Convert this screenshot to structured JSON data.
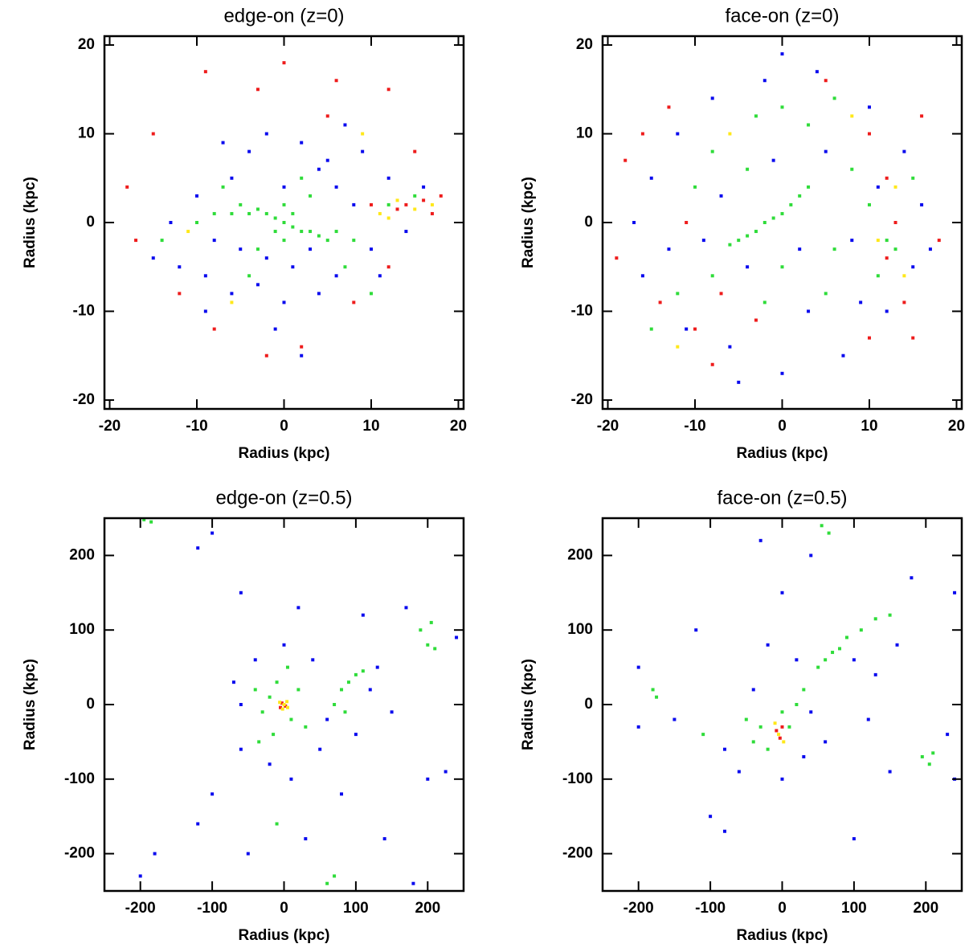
{
  "chart_data": [
    {
      "type": "scatter",
      "title": "edge-on (z=0)",
      "xlabel": "Radius (kpc)",
      "ylabel": "Radius (kpc)",
      "xlim": [
        -20.6,
        20.6
      ],
      "ylim": [
        -21,
        21
      ],
      "xticks": [
        -20,
        -10,
        0,
        10,
        20
      ],
      "yticks": [
        -20,
        -10,
        0,
        10,
        20
      ],
      "series": [
        {
          "color": "#0a0aee",
          "x": [
            -10,
            -8,
            -6,
            -4,
            -2,
            2,
            4,
            6,
            8,
            10,
            6,
            4,
            0,
            -3,
            -6,
            -9,
            -12,
            -13,
            12,
            14,
            9,
            -7,
            1,
            -2,
            3,
            0,
            -5,
            5,
            11,
            -1,
            2,
            -15,
            16,
            7,
            -9
          ],
          "y": [
            3,
            -2,
            5,
            8,
            10,
            9,
            6,
            4,
            2,
            -3,
            -6,
            -8,
            -9,
            -7,
            -8,
            -6,
            -5,
            0,
            5,
            -1,
            8,
            9,
            -5,
            -4,
            -3,
            4,
            -3,
            7,
            -6,
            -12,
            -15,
            -4,
            4,
            11,
            -10
          ]
        },
        {
          "color": "#2fdc3a",
          "x": [
            0,
            1,
            -1,
            2,
            -2,
            3,
            -3,
            4,
            -4,
            5,
            -5,
            6,
            -6,
            -1,
            1,
            0,
            0,
            -8,
            8,
            -10,
            12,
            -14,
            15,
            -3,
            3,
            2,
            -4,
            7,
            -7,
            10
          ],
          "y": [
            0,
            -0.5,
            0.5,
            -1,
            1,
            -1,
            1.5,
            -1.5,
            1,
            -2,
            2,
            -1,
            1,
            -1,
            1,
            2,
            -2,
            1,
            -2,
            0,
            2,
            -2,
            3,
            -3,
            3,
            5,
            -6,
            -5,
            4,
            -8
          ]
        },
        {
          "color": "#ee1c1c",
          "x": [
            -9,
            -3,
            0,
            5,
            12,
            15,
            18,
            17,
            14,
            13,
            -18,
            -15,
            -12,
            -8,
            -2,
            2,
            8,
            12,
            -17,
            6,
            10,
            16
          ],
          "y": [
            17,
            15,
            18,
            12,
            15,
            8,
            3,
            1,
            2,
            1.5,
            4,
            10,
            -8,
            -12,
            -15,
            -14,
            -9,
            -5,
            -2,
            16,
            2,
            2.5
          ]
        },
        {
          "color": "#ffe81a",
          "x": [
            11,
            13,
            15,
            17,
            12,
            -11,
            9,
            -6
          ],
          "y": [
            1,
            2.5,
            1.5,
            2,
            0.5,
            -1,
            10,
            -9
          ]
        }
      ]
    },
    {
      "type": "scatter",
      "title": "face-on (z=0)",
      "xlabel": "Radius (kpc)",
      "ylabel": "Radius (kpc)",
      "xlim": [
        -20.6,
        20.6
      ],
      "ylim": [
        -21,
        21
      ],
      "xticks": [
        -20,
        -10,
        0,
        10,
        20
      ],
      "yticks": [
        -20,
        -10,
        0,
        10,
        20
      ],
      "series": [
        {
          "color": "#0a0aee",
          "x": [
            -15,
            -12,
            -8,
            -2,
            4,
            10,
            14,
            16,
            15,
            12,
            7,
            0,
            -6,
            -11,
            -16,
            -17,
            -7,
            5,
            8,
            3,
            -4,
            -9,
            2,
            -1,
            9,
            -13,
            0,
            -5,
            17,
            11
          ],
          "y": [
            5,
            10,
            14,
            16,
            17,
            13,
            8,
            2,
            -5,
            -10,
            -15,
            -17,
            -14,
            -12,
            -6,
            0,
            3,
            8,
            -2,
            -10,
            -5,
            -2,
            -3,
            7,
            -9,
            -3,
            19,
            -18,
            -3,
            4
          ]
        },
        {
          "color": "#2fdc3a",
          "x": [
            -5,
            -4,
            -3,
            -2,
            -1,
            0,
            1,
            2,
            3,
            -6,
            0,
            -3,
            3,
            6,
            -8,
            8,
            10,
            12,
            11,
            5,
            -2,
            -8,
            -12,
            -15,
            13,
            0,
            -4,
            6,
            15,
            -10
          ],
          "y": [
            -2,
            -1.5,
            -1,
            0,
            0.5,
            1,
            2,
            3,
            4,
            -2.5,
            13,
            12,
            11,
            14,
            8,
            6,
            2,
            -2,
            -6,
            -8,
            -9,
            -6,
            -8,
            -12,
            -3,
            -5,
            6,
            -3,
            5,
            4
          ]
        },
        {
          "color": "#ee1c1c",
          "x": [
            -18,
            -16,
            -13,
            -10,
            -14,
            -8,
            10,
            12,
            13,
            12,
            14,
            10,
            16,
            5,
            -3,
            -11,
            -7,
            18,
            15,
            -19
          ],
          "y": [
            7,
            10,
            13,
            -12,
            -9,
            -16,
            10,
            5,
            0,
            -4,
            -9,
            -13,
            12,
            16,
            -11,
            0,
            -8,
            -2,
            -13,
            -4
          ]
        },
        {
          "color": "#ffe81a",
          "x": [
            11,
            13,
            8,
            -6,
            14,
            -12
          ],
          "y": [
            -2,
            4,
            12,
            10,
            -6,
            -14
          ]
        }
      ]
    },
    {
      "type": "scatter",
      "title": "edge-on (z=0.5)",
      "xlabel": "Radius (kpc)",
      "ylabel": "Radius (kpc)",
      "xlim": [
        -250,
        250
      ],
      "ylim": [
        -250,
        250
      ],
      "xticks": [
        -200,
        -100,
        0,
        100,
        200
      ],
      "yticks": [
        -200,
        -100,
        0,
        100,
        200
      ],
      "series": [
        {
          "color": "#0a0aee",
          "x": [
            -60,
            -40,
            0,
            40,
            60,
            50,
            10,
            -20,
            -60,
            -70,
            120,
            130,
            150,
            100,
            80,
            30,
            -50,
            -120,
            -180,
            -100,
            140,
            200,
            240,
            170,
            -100,
            -120,
            110,
            -60,
            20,
            180,
            -200,
            225
          ],
          "y": [
            0,
            60,
            80,
            60,
            -20,
            -60,
            -100,
            -80,
            -60,
            30,
            20,
            50,
            -10,
            -40,
            -120,
            -180,
            -200,
            -160,
            -200,
            -120,
            -180,
            -100,
            90,
            130,
            230,
            210,
            120,
            150,
            130,
            -240,
            -230,
            -90
          ]
        },
        {
          "color": "#2fdc3a",
          "x": [
            -20,
            -30,
            -10,
            10,
            20,
            -40,
            -15,
            30,
            5,
            -35,
            70,
            80,
            90,
            100,
            85,
            110,
            190,
            200,
            210,
            205,
            60,
            70,
            -195,
            -185,
            -10
          ],
          "y": [
            10,
            -10,
            30,
            -20,
            20,
            20,
            -40,
            -30,
            50,
            -50,
            0,
            20,
            30,
            40,
            -10,
            45,
            100,
            80,
            75,
            110,
            -240,
            -230,
            248,
            245,
            -160
          ]
        },
        {
          "color": "#ee1c1c",
          "x": [
            -3,
            2,
            -5
          ],
          "y": [
            2,
            -2,
            -4
          ]
        },
        {
          "color": "#ffe81a",
          "x": [
            0,
            -6,
            4,
            -2,
            5
          ],
          "y": [
            0,
            3,
            4,
            -6,
            -4
          ]
        }
      ]
    },
    {
      "type": "scatter",
      "title": "face-on (z=0.5)",
      "xlabel": "Radius (kpc)",
      "ylabel": "Radius (kpc)",
      "xlim": [
        -250,
        250
      ],
      "ylim": [
        -250,
        250
      ],
      "xticks": [
        -200,
        -100,
        0,
        100,
        200
      ],
      "yticks": [
        -200,
        -100,
        0,
        100,
        200
      ],
      "series": [
        {
          "color": "#0a0aee",
          "x": [
            -80,
            -60,
            0,
            30,
            40,
            -40,
            20,
            100,
            160,
            130,
            60,
            -20,
            0,
            40,
            -120,
            -150,
            -100,
            -80,
            150,
            230,
            240,
            100,
            180,
            -30,
            -200,
            240,
            120,
            -200
          ],
          "y": [
            -60,
            -90,
            -100,
            -70,
            -10,
            20,
            60,
            60,
            80,
            40,
            -50,
            80,
            150,
            200,
            100,
            -20,
            -150,
            -170,
            -90,
            -40,
            -100,
            -180,
            170,
            220,
            -30,
            150,
            -20,
            50
          ]
        },
        {
          "color": "#2fdc3a",
          "x": [
            -30,
            -40,
            -20,
            10,
            0,
            -50,
            20,
            30,
            50,
            70,
            90,
            110,
            130,
            150,
            80,
            60,
            195,
            205,
            210,
            55,
            65,
            -180,
            -175,
            -110
          ],
          "y": [
            -30,
            -50,
            -60,
            -30,
            -10,
            -20,
            0,
            20,
            50,
            70,
            90,
            100,
            115,
            120,
            75,
            60,
            -70,
            -80,
            -65,
            240,
            230,
            20,
            10,
            -40
          ]
        },
        {
          "color": "#ee1c1c",
          "x": [
            -8,
            -3,
            0
          ],
          "y": [
            -35,
            -45,
            -30
          ]
        },
        {
          "color": "#ffe81a",
          "x": [
            -5,
            -10,
            2
          ],
          "y": [
            -40,
            -25,
            -50
          ]
        }
      ]
    }
  ]
}
